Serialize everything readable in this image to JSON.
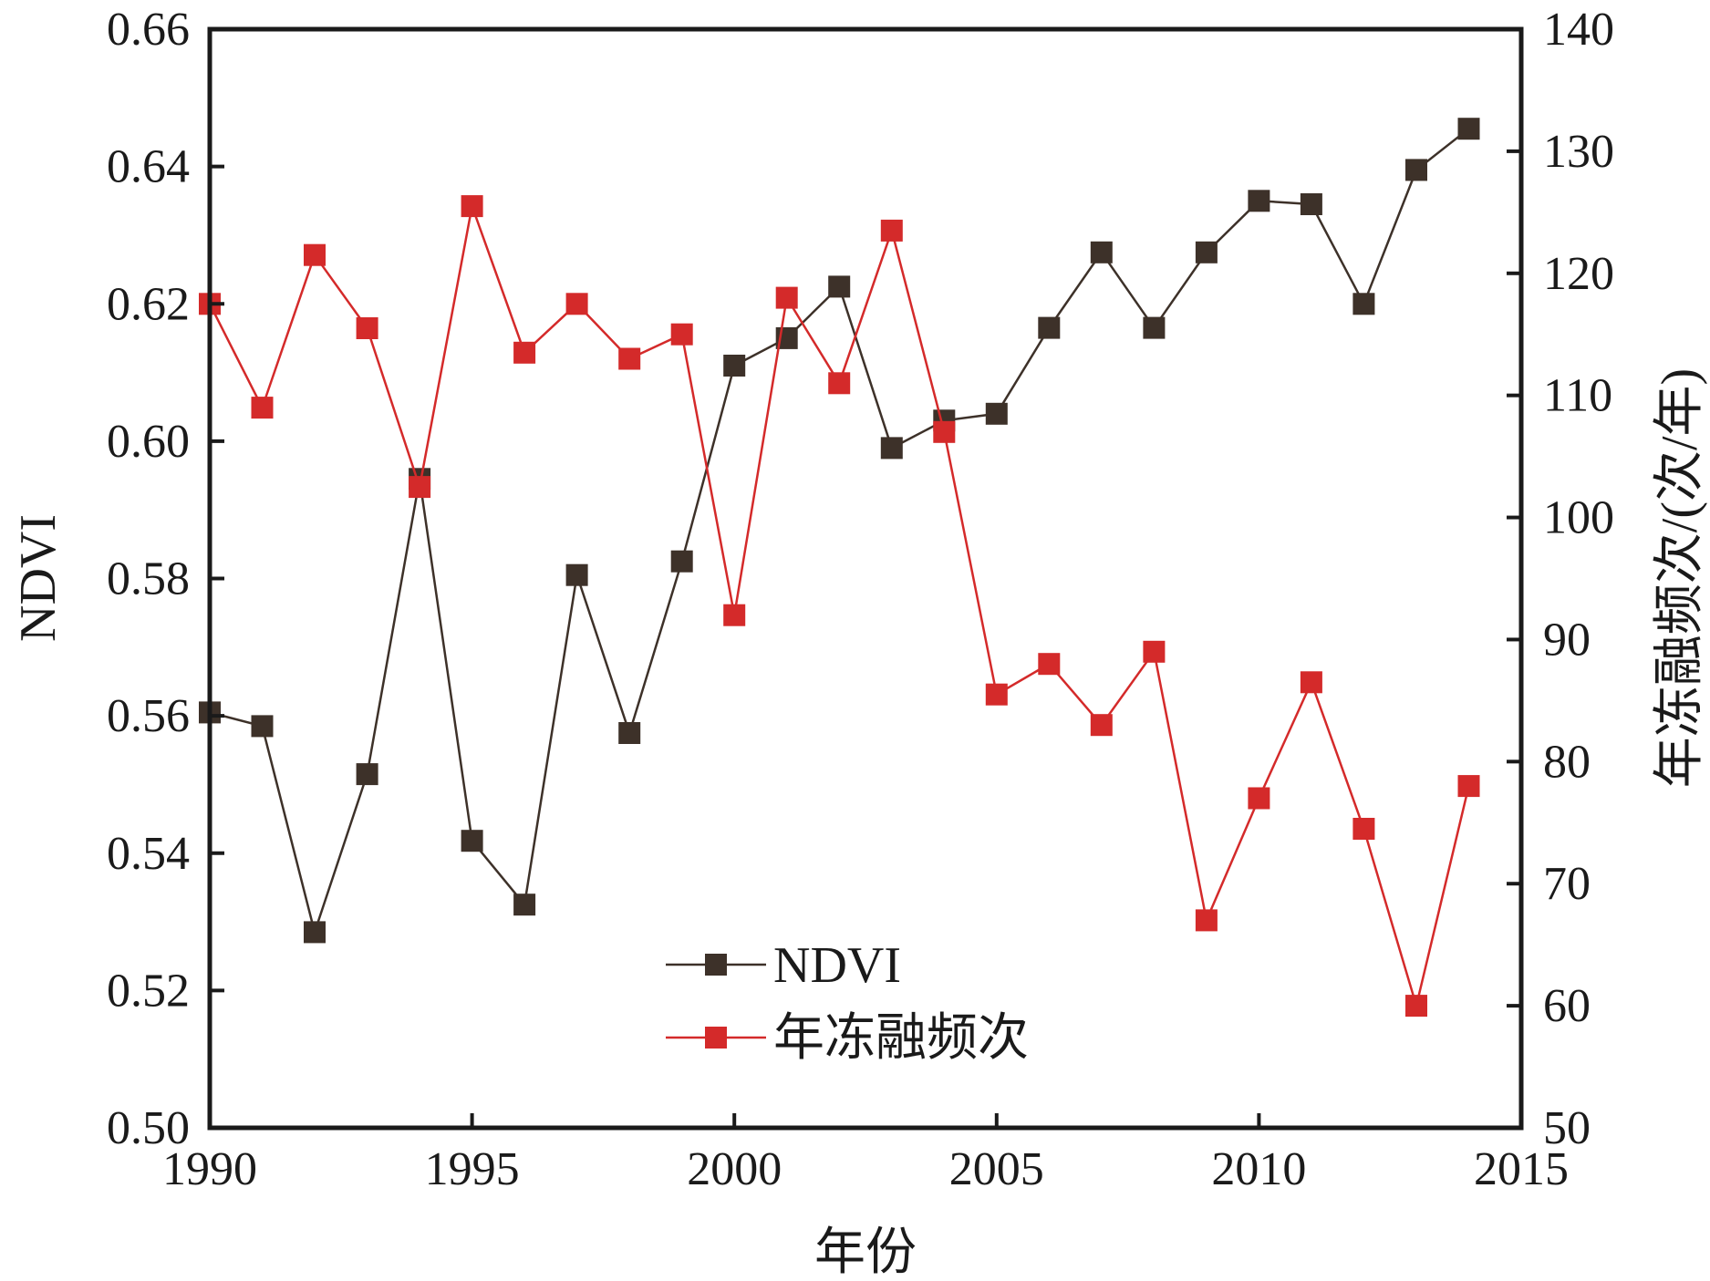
{
  "chart_data": {
    "type": "line",
    "xlabel": "年份",
    "ylabel_left": "NDVI",
    "ylabel_right": "年冻融频次/(次/年)",
    "xlim": [
      1990,
      2015
    ],
    "ylim_left": [
      0.5,
      0.66
    ],
    "ylim_right": [
      50,
      140
    ],
    "x_ticks": [
      "1990",
      "1995",
      "2000",
      "2005",
      "2010",
      "2015"
    ],
    "y_left_ticks": [
      "0.50",
      "0.52",
      "0.54",
      "0.56",
      "0.58",
      "0.60",
      "0.62",
      "0.64",
      "0.66"
    ],
    "y_right_ticks": [
      "50",
      "60",
      "70",
      "80",
      "90",
      "100",
      "110",
      "120",
      "130",
      "140"
    ],
    "legend_position": "bottom-center",
    "grid": false,
    "x": [
      1990,
      1991,
      1992,
      1993,
      1994,
      1995,
      1996,
      1997,
      1998,
      1999,
      2000,
      2001,
      2002,
      2003,
      2004,
      2005,
      2006,
      2007,
      2008,
      2009,
      2010,
      2011,
      2012,
      2013,
      2014
    ],
    "series": [
      {
        "name": "NDVI",
        "axis": "left",
        "color": "#3d3129",
        "values": [
          0.5605,
          0.5585,
          0.5285,
          0.5515,
          0.5945,
          0.5418,
          0.5325,
          0.5805,
          0.5575,
          0.5825,
          0.611,
          0.615,
          0.6225,
          0.599,
          0.603,
          0.604,
          0.6165,
          0.6275,
          0.6165,
          0.6275,
          0.635,
          0.6345,
          0.62,
          0.6395,
          0.6455
        ]
      },
      {
        "name": "年冻融频次",
        "axis": "right",
        "color": "#d42a2a",
        "values": [
          117.5,
          109,
          121.5,
          115.5,
          102.5,
          125.5,
          113.5,
          117.5,
          113,
          115,
          92,
          118,
          111,
          123.5,
          107,
          85.5,
          88,
          83,
          89,
          67,
          77,
          86.5,
          74.5,
          60,
          78
        ]
      }
    ]
  }
}
